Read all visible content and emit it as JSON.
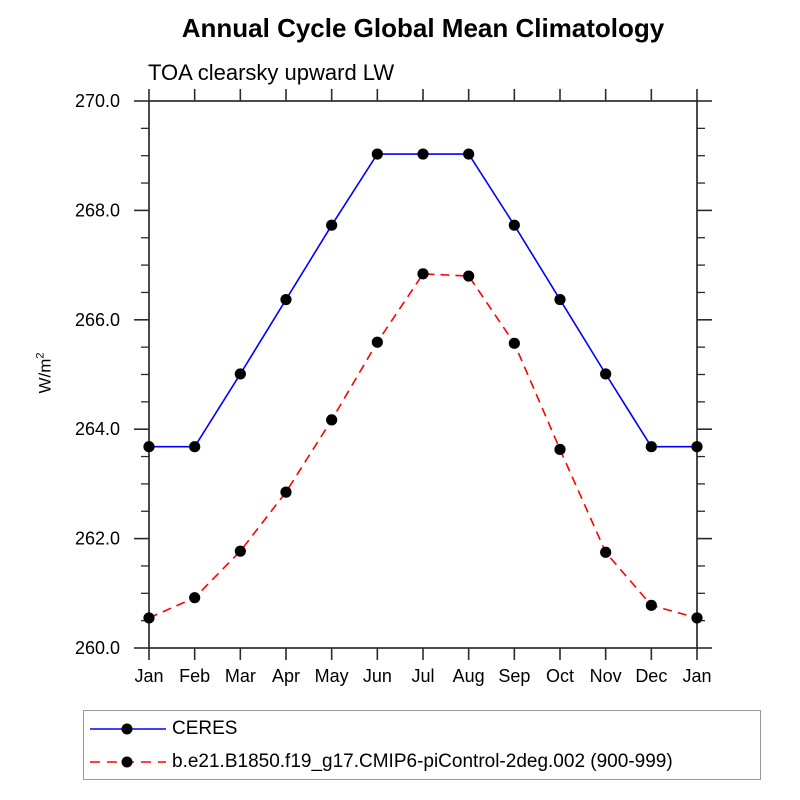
{
  "chart_data": {
    "type": "line",
    "title": "Annual Cycle Global Mean Climatology",
    "subtitle": "TOA clearsky upward LW",
    "ylabel": "W/m²",
    "ylabel_base": "W/m",
    "ylabel_exponent": "2",
    "categories": [
      "Jan",
      "Feb",
      "Mar",
      "Apr",
      "May",
      "Jun",
      "Jul",
      "Aug",
      "Sep",
      "Oct",
      "Nov",
      "Dec",
      "Jan"
    ],
    "ylim": [
      260.0,
      270.0
    ],
    "ytick_major_step": 2.0,
    "ytick_minor_step": 0.5,
    "ytick_labels": [
      "270.0",
      "268.0",
      "266.0",
      "264.0",
      "262.0",
      "260.0"
    ],
    "grid": false,
    "legend_position": "bottom-left",
    "axis_color": "#2b2b2b",
    "marker_shape": "filled-circle",
    "series": [
      {
        "name": "CERES",
        "color": "#0000ff",
        "line_style": "solid",
        "marker_color": "#000000",
        "values": [
          263.68,
          263.68,
          265.01,
          266.37,
          267.73,
          269.03,
          269.03,
          269.03,
          267.73,
          266.37,
          265.01,
          263.68,
          263.68
        ]
      },
      {
        "name": "b.e21.B1850.f19_g17.CMIP6-piControl-2deg.002 (900-999)",
        "color": "#ff0000",
        "line_style": "dashed",
        "marker_color": "#000000",
        "values": [
          260.55,
          260.92,
          261.77,
          262.85,
          264.17,
          265.59,
          266.84,
          266.8,
          265.57,
          263.63,
          261.75,
          260.78,
          260.55
        ]
      }
    ]
  }
}
